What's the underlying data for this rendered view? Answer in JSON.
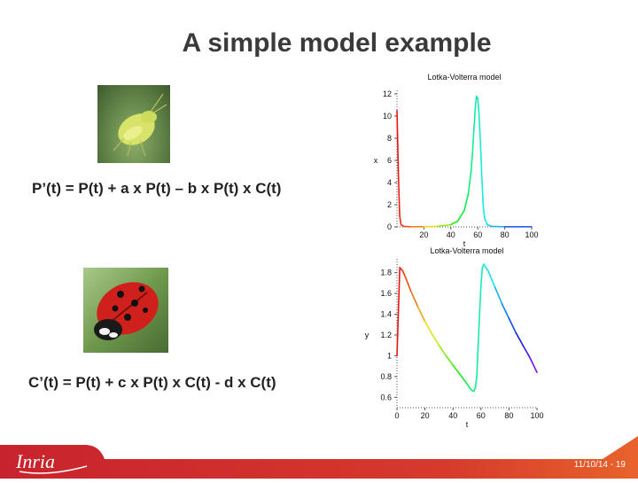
{
  "slide": {
    "title": "A simple model example",
    "equation_prey": "P’(t) = P(t) + a x P(t) – b x P(t) x C(t)",
    "equation_predator": "C’(t) = P(t) + c x P(t) x C(t)  - d x C(t)",
    "footer_date": "11/10/14 - 19"
  },
  "images": {
    "prey": "aphid",
    "predator": "ladybug",
    "logo": "inria-logo"
  },
  "colors": {
    "footer_red": "#c8232d",
    "footer_orange": "#e8632b",
    "title": "#3a3a3a"
  },
  "chart_data": [
    {
      "type": "line",
      "title": "Lotka-Volterra model",
      "xlabel": "t",
      "ylabel": "x",
      "xlim": [
        0,
        100
      ],
      "ylim": [
        0,
        12
      ],
      "xticks": [
        20,
        40,
        60,
        80,
        100
      ],
      "yticks": [
        0,
        2,
        4,
        6,
        8,
        10,
        12
      ],
      "x": [
        0,
        1,
        2,
        3,
        5,
        10,
        20,
        30,
        40,
        45,
        50,
        53,
        55,
        56,
        57,
        58,
        59,
        60,
        61,
        62,
        63,
        64,
        65,
        67,
        70,
        80,
        100
      ],
      "y": [
        10.5,
        5,
        1,
        0.2,
        0.05,
        0.01,
        0.02,
        0.05,
        0.2,
        0.5,
        1.5,
        3,
        5,
        6.5,
        8.5,
        10.5,
        11.8,
        11.6,
        10,
        7.5,
        4.5,
        2,
        0.8,
        0.2,
        0.05,
        0.01,
        0.01
      ]
    },
    {
      "type": "line",
      "title": "Lotka-Volterra model",
      "xlabel": "t",
      "ylabel": "y",
      "xlim": [
        0,
        100
      ],
      "ylim": [
        0.5,
        1.9
      ],
      "xticks": [
        0,
        20,
        40,
        60,
        80,
        100
      ],
      "yticks": [
        0.6,
        0.8,
        1,
        1.2,
        1.4,
        1.6,
        1.8
      ],
      "x": [
        0,
        2,
        4,
        6,
        10,
        15,
        20,
        25,
        30,
        35,
        40,
        45,
        50,
        52,
        54,
        55,
        56,
        57,
        58,
        59,
        60,
        61,
        62,
        65,
        70,
        75,
        80,
        85,
        90,
        95,
        100
      ],
      "y": [
        1.0,
        1.85,
        1.82,
        1.76,
        1.62,
        1.47,
        1.33,
        1.21,
        1.1,
        1.0,
        0.91,
        0.82,
        0.73,
        0.69,
        0.66,
        0.66,
        0.69,
        0.8,
        1.1,
        1.4,
        1.68,
        1.85,
        1.88,
        1.82,
        1.66,
        1.5,
        1.36,
        1.22,
        1.1,
        0.98,
        0.84
      ]
    }
  ]
}
